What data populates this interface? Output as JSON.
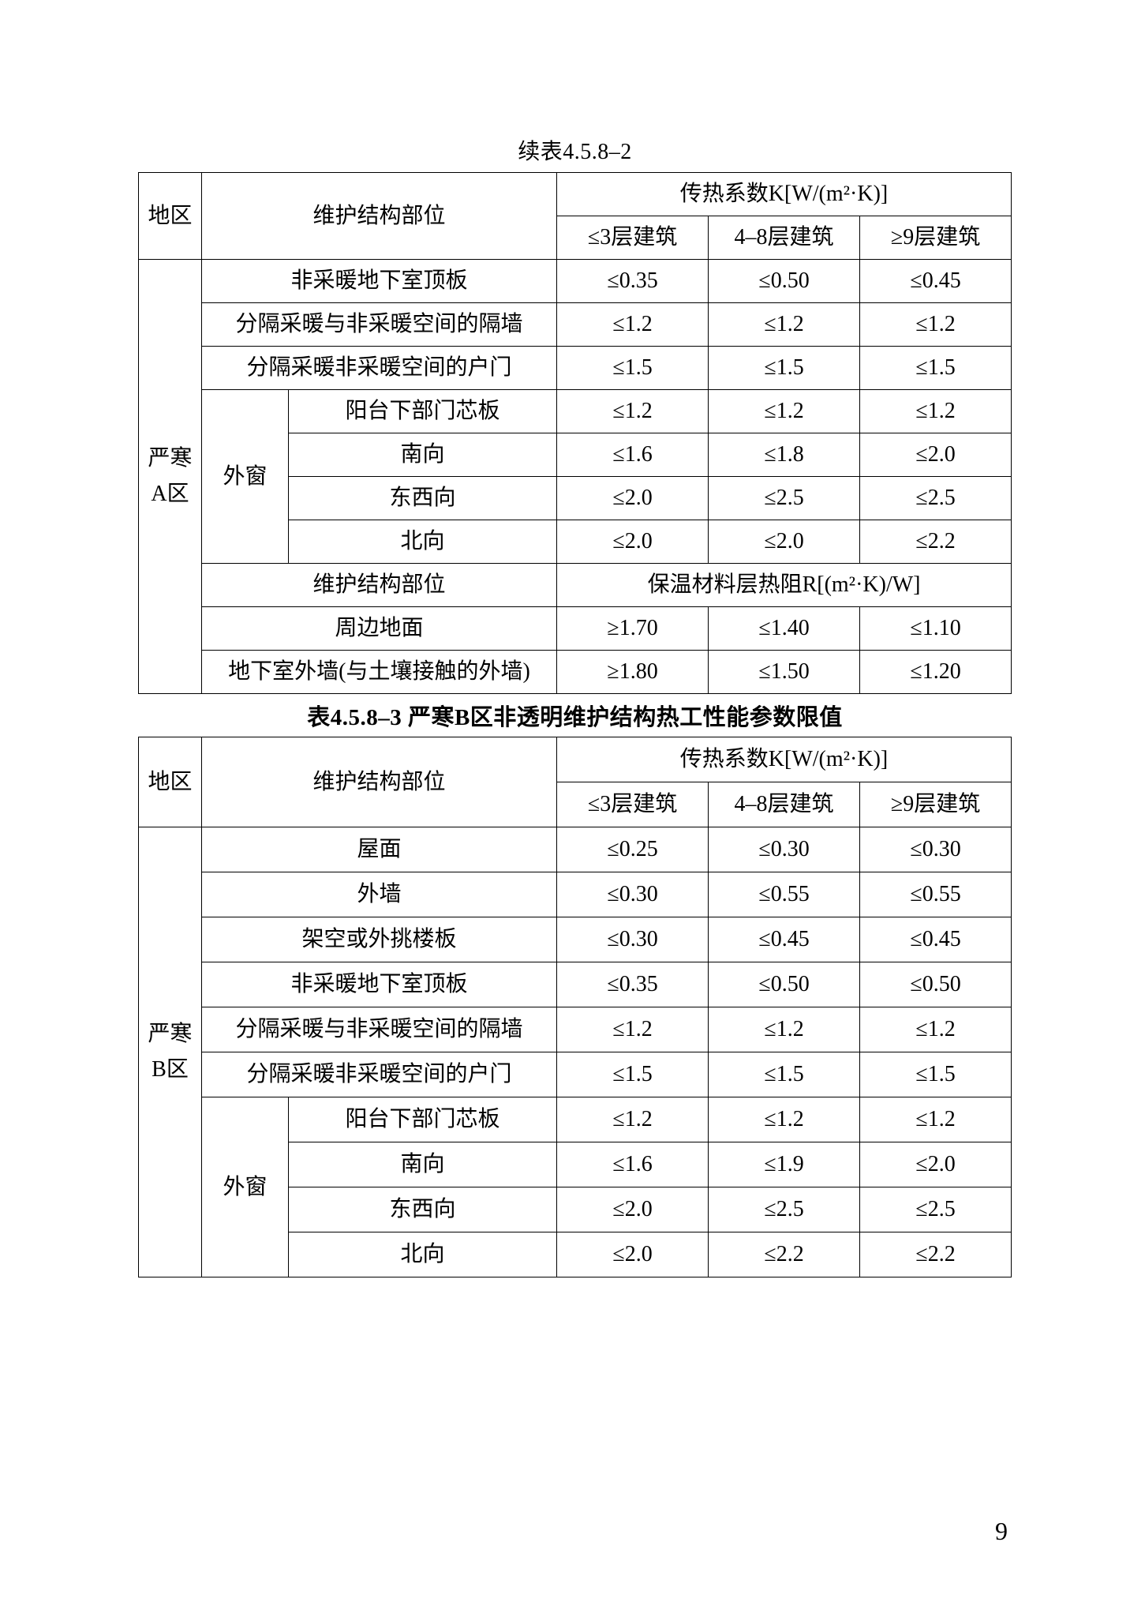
{
  "page_number": "9",
  "colors": {
    "text": "#000000",
    "border": "#000000",
    "background": "#ffffff"
  },
  "table1": {
    "caption": "续表4.5.8–2",
    "header": {
      "region": "地区",
      "part": "维护结构部位",
      "k_header": "传热系数K[W/(m²·K)]",
      "col_a": "≤3层建筑",
      "col_b": "4–8层建筑",
      "col_c": "≥9层建筑"
    },
    "region_label": "严寒\nA区",
    "rows_simple": [
      {
        "label": "非采暖地下室顶板",
        "a": "≤0.35",
        "b": "≤0.50",
        "c": "≤0.45"
      },
      {
        "label": "分隔采暖与非采暖空间的隔墙",
        "a": "≤1.2",
        "b": "≤1.2",
        "c": "≤1.2"
      },
      {
        "label": "分隔采暖非采暖空间的户门",
        "a": "≤1.5",
        "b": "≤1.5",
        "c": "≤1.5"
      }
    ],
    "window_group": {
      "group_label": "外窗",
      "rows": [
        {
          "label": "阳台下部门芯板",
          "a": "≤1.2",
          "b": "≤1.2",
          "c": "≤1.2"
        },
        {
          "label": "南向",
          "a": "≤1.6",
          "b": "≤1.8",
          "c": "≤2.0"
        },
        {
          "label": "东西向",
          "a": "≤2.0",
          "b": "≤2.5",
          "c": "≤2.5"
        },
        {
          "label": "北向",
          "a": "≤2.0",
          "b": "≤2.0",
          "c": "≤2.2"
        }
      ]
    },
    "subheader2": {
      "part": "维护结构部位",
      "r_header": "保温材料层热阻R[(m²·K)/W]"
    },
    "rows_r": [
      {
        "label": "周边地面",
        "a": "≥1.70",
        "b": "≤1.40",
        "c": "≤1.10"
      },
      {
        "label": "地下室外墙(与土壤接触的外墙)",
        "a": "≥1.80",
        "b": "≤1.50",
        "c": "≤1.20"
      }
    ]
  },
  "table2": {
    "caption": "表4.5.8–3 严寒B区非透明维护结构热工性能参数限值",
    "header": {
      "region": "地区",
      "part": "维护结构部位",
      "k_header": "传热系数K[W/(m²·K)]",
      "col_a": "≤3层建筑",
      "col_b": "4–8层建筑",
      "col_c": "≥9层建筑"
    },
    "region_label": "严寒\nB区",
    "rows_simple": [
      {
        "label": "屋面",
        "a": "≤0.25",
        "b": "≤0.30",
        "c": "≤0.30"
      },
      {
        "label": "外墙",
        "a": "≤0.30",
        "b": "≤0.55",
        "c": "≤0.55"
      },
      {
        "label": "架空或外挑楼板",
        "a": "≤0.30",
        "b": "≤0.45",
        "c": "≤0.45"
      },
      {
        "label": "非采暖地下室顶板",
        "a": "≤0.35",
        "b": "≤0.50",
        "c": "≤0.50"
      },
      {
        "label": "分隔采暖与非采暖空间的隔墙",
        "a": "≤1.2",
        "b": "≤1.2",
        "c": "≤1.2"
      },
      {
        "label": "分隔采暖非采暖空间的户门",
        "a": "≤1.5",
        "b": "≤1.5",
        "c": "≤1.5"
      }
    ],
    "window_group": {
      "group_label": "外窗",
      "rows": [
        {
          "label": "阳台下部门芯板",
          "a": "≤1.2",
          "b": "≤1.2",
          "c": "≤1.2"
        },
        {
          "label": "南向",
          "a": "≤1.6",
          "b": "≤1.9",
          "c": "≤2.0"
        },
        {
          "label": "东西向",
          "a": "≤2.0",
          "b": "≤2.5",
          "c": "≤2.5"
        },
        {
          "label": "北向",
          "a": "≤2.0",
          "b": "≤2.2",
          "c": "≤2.2"
        }
      ]
    }
  }
}
